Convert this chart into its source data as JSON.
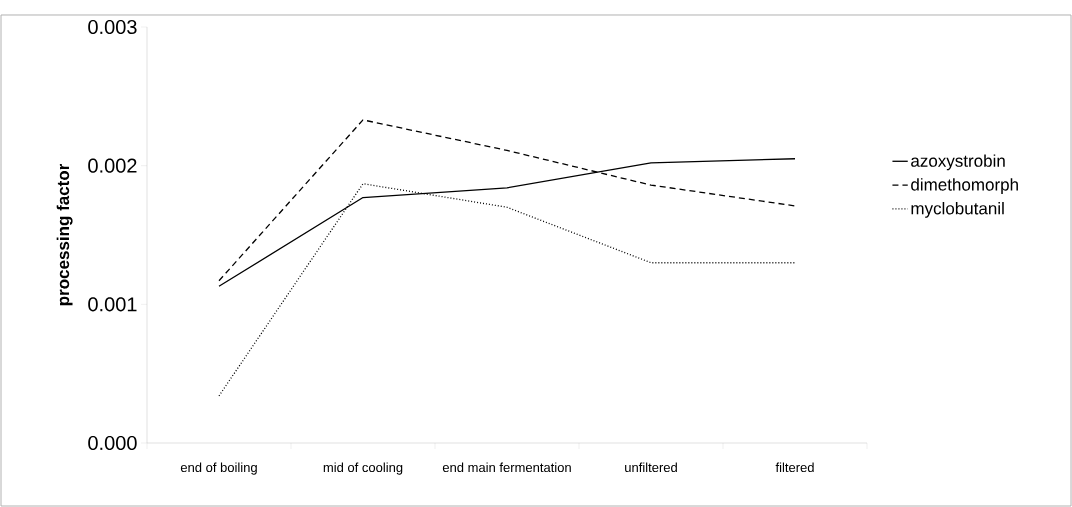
{
  "chart_data": {
    "type": "line",
    "ylabel": "processing factor",
    "categories": [
      "end of boiling",
      "mid of cooling",
      "end main fermentation",
      "unfiltered",
      "filtered"
    ],
    "series": [
      {
        "name": "azoxystrobin",
        "color": "#000000",
        "line_style": "solid",
        "values": [
          0.00113,
          0.00177,
          0.00184,
          0.00202,
          0.00205
        ]
      },
      {
        "name": "dimethomorph",
        "color": "#000000",
        "line_style": "dashed",
        "values": [
          0.00117,
          0.00233,
          0.00211,
          0.00186,
          0.00171
        ]
      },
      {
        "name": "myclobutanil",
        "color": "#000000",
        "line_style": "dotted",
        "values": [
          0.00034,
          0.00187,
          0.0017,
          0.0013,
          0.0013
        ]
      }
    ],
    "ylim": [
      0,
      0.003
    ],
    "yticks": [
      {
        "value": 0,
        "label": "0.000"
      },
      0.001,
      0.002,
      0.003
    ],
    "legend": "right",
    "grid": false,
    "marker": "none"
  }
}
